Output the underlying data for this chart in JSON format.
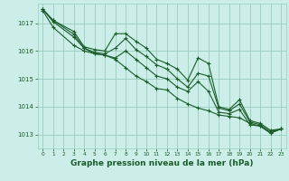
{
  "background_color": "#cceee8",
  "grid_color": "#99ccbb",
  "line_color": "#1a5c2a",
  "xlabel": "Graphe pression niveau de la mer (hPa)",
  "xlabel_fontsize": 6.5,
  "xlim": [
    -0.5,
    23.5
  ],
  "ylim": [
    1012.5,
    1017.7
  ],
  "yticks": [
    1013,
    1014,
    1015,
    1016,
    1017
  ],
  "xticks": [
    0,
    1,
    2,
    3,
    4,
    5,
    6,
    7,
    8,
    9,
    10,
    11,
    12,
    13,
    14,
    15,
    16,
    17,
    18,
    19,
    20,
    21,
    22,
    23
  ],
  "line1_x": [
    0,
    1,
    3,
    4,
    5,
    6,
    7,
    8,
    9,
    10,
    11,
    12,
    13,
    14,
    15,
    16,
    17,
    18,
    19,
    20,
    21,
    22,
    23
  ],
  "line1_y": [
    1017.5,
    1017.1,
    1016.7,
    1016.15,
    1016.05,
    1016.0,
    1016.62,
    1016.62,
    1016.35,
    1016.1,
    1015.7,
    1015.55,
    1015.35,
    1014.95,
    1015.75,
    1015.55,
    1014.0,
    1013.9,
    1014.25,
    1013.5,
    1013.4,
    1013.15,
    1013.2
  ],
  "line2_x": [
    0,
    1,
    3,
    4,
    5,
    6,
    7,
    8,
    9,
    10,
    11,
    12,
    13,
    14,
    15,
    16,
    17,
    18,
    19,
    20,
    21,
    22,
    23
  ],
  "line2_y": [
    1017.5,
    1017.1,
    1016.6,
    1016.1,
    1015.95,
    1015.9,
    1016.1,
    1016.45,
    1016.05,
    1015.8,
    1015.5,
    1015.35,
    1015.0,
    1014.7,
    1015.2,
    1015.1,
    1013.95,
    1013.85,
    1014.1,
    1013.45,
    1013.35,
    1013.1,
    1013.2
  ],
  "line3_x": [
    0,
    1,
    3,
    4,
    5,
    6,
    7,
    8,
    9,
    10,
    11,
    12,
    13,
    14,
    15,
    16,
    17,
    18,
    19,
    20,
    21,
    22,
    23
  ],
  "line3_y": [
    1017.5,
    1017.05,
    1016.5,
    1016.1,
    1015.9,
    1015.85,
    1015.75,
    1016.0,
    1015.7,
    1015.4,
    1015.1,
    1015.0,
    1014.7,
    1014.55,
    1014.9,
    1014.55,
    1013.8,
    1013.75,
    1013.9,
    1013.35,
    1013.3,
    1013.05,
    1013.2
  ],
  "line4_x": [
    0,
    1,
    3,
    4,
    5,
    6,
    7,
    8,
    9,
    10,
    11,
    12,
    13,
    14,
    15,
    16,
    17,
    18,
    19,
    20,
    21,
    22,
    23
  ],
  "line4_y": [
    1017.45,
    1016.85,
    1016.2,
    1016.0,
    1015.9,
    1015.85,
    1015.7,
    1015.4,
    1015.1,
    1014.9,
    1014.65,
    1014.6,
    1014.3,
    1014.1,
    1013.95,
    1013.85,
    1013.7,
    1013.65,
    1013.6,
    1013.4,
    1013.3,
    1013.05,
    1013.2
  ]
}
